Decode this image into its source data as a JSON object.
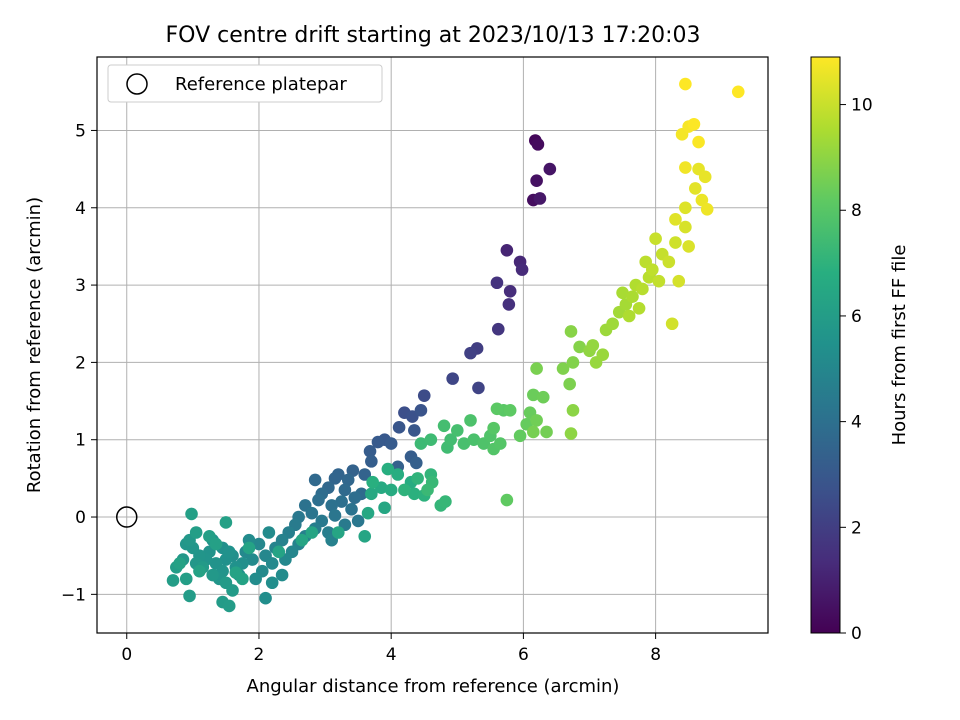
{
  "chart_data": {
    "type": "scatter",
    "title": "FOV centre drift starting at 2023/10/13 17:20:03",
    "xlabel": "Angular distance from reference (arcmin)",
    "ylabel": "Rotation from reference (arcmin)",
    "xlim": [
      -0.45,
      9.7
    ],
    "ylim": [
      -1.5,
      5.95
    ],
    "xticks": [
      0,
      2,
      4,
      6,
      8
    ],
    "yticks": [
      -1,
      0,
      1,
      2,
      3,
      4,
      5
    ],
    "grid": true,
    "legend": {
      "location": "upper-left",
      "entries": [
        {
          "label": "Reference platepar",
          "marker": "open-circle"
        }
      ]
    },
    "reference_point": {
      "x": 0,
      "y": 0
    },
    "colorbar": {
      "label": "Hours from first FF file",
      "colormap": "viridis",
      "range": [
        0,
        10.9
      ],
      "ticks": [
        0,
        2,
        4,
        6,
        8,
        10
      ]
    },
    "points": [
      [
        6.18,
        4.87,
        0.2
      ],
      [
        6.22,
        4.82,
        0.3
      ],
      [
        6.15,
        4.1,
        0.4
      ],
      [
        6.2,
        4.35,
        0.5
      ],
      [
        6.4,
        4.5,
        0.6
      ],
      [
        6.25,
        4.12,
        0.7
      ],
      [
        5.75,
        3.45,
        1.1
      ],
      [
        5.95,
        3.3,
        1.2
      ],
      [
        5.98,
        3.2,
        1.3
      ],
      [
        5.8,
        2.92,
        1.4
      ],
      [
        5.78,
        2.75,
        1.5
      ],
      [
        5.6,
        3.03,
        1.6
      ],
      [
        5.62,
        2.43,
        1.7
      ],
      [
        5.3,
        2.18,
        2.0
      ],
      [
        5.2,
        2.12,
        2.1
      ],
      [
        5.32,
        1.67,
        2.2
      ],
      [
        4.93,
        1.79,
        2.3
      ],
      [
        4.5,
        1.57,
        2.5
      ],
      [
        4.2,
        1.35,
        2.6
      ],
      [
        4.32,
        1.3,
        2.7
      ],
      [
        4.45,
        1.38,
        2.8
      ],
      [
        4.12,
        1.16,
        2.9
      ],
      [
        4.35,
        1.12,
        2.95
      ],
      [
        3.9,
        1.0,
        3.0
      ],
      [
        3.8,
        0.97,
        3.05
      ],
      [
        4.0,
        0.95,
        3.1
      ],
      [
        3.68,
        0.85,
        3.15
      ],
      [
        4.3,
        0.78,
        3.2
      ],
      [
        3.7,
        0.72,
        3.25
      ],
      [
        4.38,
        0.7,
        3.3
      ],
      [
        4.1,
        0.65,
        3.35
      ],
      [
        3.42,
        0.6,
        3.4
      ],
      [
        3.6,
        0.55,
        3.45
      ],
      [
        3.2,
        0.55,
        3.5
      ],
      [
        3.15,
        0.5,
        3.55
      ],
      [
        3.35,
        0.48,
        3.6
      ],
      [
        3.05,
        0.38,
        3.65
      ],
      [
        2.85,
        0.48,
        3.7
      ],
      [
        3.3,
        0.35,
        3.75
      ],
      [
        3.55,
        0.3,
        3.8
      ],
      [
        2.95,
        0.3,
        3.85
      ],
      [
        3.45,
        0.25,
        3.9
      ],
      [
        2.9,
        0.22,
        3.95
      ],
      [
        3.25,
        0.2,
        4.0
      ],
      [
        3.1,
        0.15,
        4.05
      ],
      [
        2.7,
        0.15,
        4.1
      ],
      [
        3.4,
        0.1,
        4.15
      ],
      [
        2.8,
        0.05,
        4.2
      ],
      [
        3.15,
        0.02,
        4.25
      ],
      [
        3.5,
        -0.05,
        4.3
      ],
      [
        2.6,
        0.0,
        4.35
      ],
      [
        2.95,
        -0.05,
        4.4
      ],
      [
        3.3,
        -0.1,
        4.45
      ],
      [
        2.55,
        -0.1,
        4.5
      ],
      [
        2.85,
        -0.15,
        4.55
      ],
      [
        3.05,
        -0.2,
        4.6
      ],
      [
        2.45,
        -0.2,
        4.65
      ],
      [
        2.7,
        -0.25,
        4.7
      ],
      [
        3.1,
        -0.3,
        4.75
      ],
      [
        2.35,
        -0.3,
        4.8
      ],
      [
        2.6,
        -0.35,
        4.85
      ],
      [
        2.25,
        -0.4,
        4.9
      ],
      [
        2.5,
        -0.45,
        4.95
      ],
      [
        2.0,
        -0.35,
        5.0
      ],
      [
        2.1,
        -0.5,
        5.0
      ],
      [
        2.4,
        -0.55,
        5.05
      ],
      [
        1.8,
        -0.45,
        5.1
      ],
      [
        2.2,
        -0.6,
        5.1
      ],
      [
        1.9,
        -0.55,
        5.15
      ],
      [
        2.05,
        -0.7,
        5.15
      ],
      [
        2.15,
        -0.2,
        5.2
      ],
      [
        1.85,
        -0.3,
        5.2
      ],
      [
        2.35,
        -0.75,
        5.25
      ],
      [
        1.95,
        -0.8,
        5.25
      ],
      [
        2.2,
        -0.85,
        5.3
      ],
      [
        2.1,
        -1.05,
        5.3
      ],
      [
        1.75,
        -0.6,
        5.35
      ],
      [
        1.6,
        -0.5,
        5.35
      ],
      [
        1.45,
        -0.4,
        5.4
      ],
      [
        1.7,
        -0.75,
        5.4
      ],
      [
        1.3,
        -0.3,
        5.45
      ],
      [
        1.5,
        -0.55,
        5.45
      ],
      [
        1.65,
        -0.65,
        5.5
      ],
      [
        1.55,
        -0.45,
        5.5
      ],
      [
        1.35,
        -0.6,
        5.55
      ],
      [
        1.25,
        -0.45,
        5.55
      ],
      [
        1.45,
        -0.7,
        5.6
      ],
      [
        1.2,
        -0.55,
        5.6
      ],
      [
        1.1,
        -0.5,
        5.65
      ],
      [
        1.4,
        -0.8,
        5.65
      ],
      [
        1.0,
        -0.4,
        5.7
      ],
      [
        0.9,
        -0.35,
        5.7
      ],
      [
        1.05,
        -0.6,
        5.75
      ],
      [
        0.85,
        -0.55,
        5.75
      ],
      [
        0.95,
        -0.3,
        5.8
      ],
      [
        1.3,
        -0.75,
        5.8
      ],
      [
        1.15,
        -0.65,
        5.85
      ],
      [
        1.5,
        -0.85,
        5.85
      ],
      [
        1.6,
        -0.95,
        5.9
      ],
      [
        1.45,
        -1.1,
        5.9
      ],
      [
        1.55,
        -1.15,
        5.95
      ],
      [
        0.95,
        -1.02,
        5.95
      ],
      [
        0.75,
        -0.65,
        6.0
      ],
      [
        0.7,
        -0.82,
        6.0
      ],
      [
        0.9,
        -0.8,
        6.05
      ],
      [
        1.05,
        -0.2,
        6.05
      ],
      [
        0.98,
        0.04,
        6.1
      ],
      [
        1.25,
        -0.25,
        6.1
      ],
      [
        1.5,
        -0.07,
        6.15
      ],
      [
        1.35,
        -0.35,
        6.15
      ],
      [
        1.1,
        -0.7,
        6.2
      ],
      [
        0.8,
        -0.6,
        6.2
      ],
      [
        1.75,
        -0.8,
        6.25
      ],
      [
        1.65,
        -0.72,
        6.25
      ],
      [
        1.85,
        -0.4,
        6.3
      ],
      [
        2.3,
        -0.45,
        6.3
      ],
      [
        2.65,
        -0.3,
        6.35
      ],
      [
        2.8,
        -0.2,
        6.35
      ],
      [
        3.2,
        -0.2,
        6.4
      ],
      [
        3.6,
        -0.25,
        6.4
      ],
      [
        3.9,
        0.12,
        6.45
      ],
      [
        3.65,
        0.05,
        6.5
      ],
      [
        3.7,
        0.3,
        6.55
      ],
      [
        3.85,
        0.38,
        6.6
      ],
      [
        4.0,
        0.35,
        6.65
      ],
      [
        4.3,
        0.45,
        6.7
      ],
      [
        4.1,
        0.55,
        6.75
      ],
      [
        3.95,
        0.62,
        6.8
      ],
      [
        3.72,
        0.45,
        6.85
      ],
      [
        4.35,
        0.3,
        6.9
      ],
      [
        4.5,
        0.28,
        6.95
      ],
      [
        4.2,
        0.35,
        7.0
      ],
      [
        4.4,
        0.5,
        7.05
      ],
      [
        4.6,
        0.55,
        7.1
      ],
      [
        4.75,
        0.15,
        7.15
      ],
      [
        4.82,
        0.2,
        7.2
      ],
      [
        4.62,
        0.45,
        7.25
      ],
      [
        4.55,
        0.35,
        7.3
      ],
      [
        4.45,
        0.95,
        7.35
      ],
      [
        4.6,
        1.0,
        7.4
      ],
      [
        4.85,
        0.9,
        7.45
      ],
      [
        4.9,
        1.0,
        7.5
      ],
      [
        4.8,
        1.18,
        7.55
      ],
      [
        5.0,
        1.12,
        7.6
      ],
      [
        5.1,
        0.95,
        7.65
      ],
      [
        5.25,
        1.0,
        7.7
      ],
      [
        5.2,
        1.25,
        7.75
      ],
      [
        5.4,
        0.95,
        7.8
      ],
      [
        5.5,
        1.05,
        7.85
      ],
      [
        5.55,
        0.88,
        7.9
      ],
      [
        5.65,
        0.95,
        7.95
      ],
      [
        5.55,
        1.15,
        8.0
      ],
      [
        5.7,
        1.38,
        8.05
      ],
      [
        5.6,
        1.4,
        8.1
      ],
      [
        5.8,
        1.38,
        8.15
      ],
      [
        5.75,
        0.22,
        8.2
      ],
      [
        5.95,
        1.05,
        8.25
      ],
      [
        6.05,
        1.2,
        8.3
      ],
      [
        6.1,
        1.35,
        8.35
      ],
      [
        6.15,
        1.58,
        8.4
      ],
      [
        6.3,
        1.55,
        8.45
      ],
      [
        6.2,
        1.25,
        8.5
      ],
      [
        6.35,
        1.1,
        8.55
      ],
      [
        6.15,
        1.1,
        8.6
      ],
      [
        6.2,
        1.92,
        8.65
      ],
      [
        6.7,
        1.72,
        8.7
      ],
      [
        6.6,
        1.92,
        8.75
      ],
      [
        6.75,
        2.0,
        8.8
      ],
      [
        6.85,
        2.2,
        8.85
      ],
      [
        6.72,
        2.4,
        8.9
      ],
      [
        6.75,
        1.38,
        8.95
      ],
      [
        6.72,
        1.08,
        9.0
      ],
      [
        7.0,
        2.15,
        9.05
      ],
      [
        7.05,
        2.22,
        9.1
      ],
      [
        7.1,
        2.0,
        9.15
      ],
      [
        7.2,
        2.1,
        9.2
      ],
      [
        7.25,
        2.42,
        9.25
      ],
      [
        7.35,
        2.5,
        9.3
      ],
      [
        7.45,
        2.65,
        9.35
      ],
      [
        7.55,
        2.75,
        9.4
      ],
      [
        7.5,
        2.9,
        9.45
      ],
      [
        7.65,
        2.85,
        9.5
      ],
      [
        7.6,
        2.6,
        9.55
      ],
      [
        7.7,
        3.0,
        9.6
      ],
      [
        7.75,
        2.7,
        9.65
      ],
      [
        7.8,
        2.95,
        9.7
      ],
      [
        7.9,
        3.1,
        9.75
      ],
      [
        7.85,
        3.3,
        9.8
      ],
      [
        7.95,
        3.2,
        9.85
      ],
      [
        8.05,
        3.05,
        9.9
      ],
      [
        8.1,
        3.4,
        9.95
      ],
      [
        8.0,
        3.6,
        10.0
      ],
      [
        8.2,
        3.3,
        10.05
      ],
      [
        8.3,
        3.55,
        10.1
      ],
      [
        8.25,
        2.5,
        10.15
      ],
      [
        8.35,
        3.05,
        10.2
      ],
      [
        8.45,
        3.75,
        10.25
      ],
      [
        8.5,
        3.5,
        10.3
      ],
      [
        8.45,
        4.0,
        10.35
      ],
      [
        8.3,
        3.85,
        10.4
      ],
      [
        8.6,
        4.25,
        10.45
      ],
      [
        8.65,
        4.5,
        10.5
      ],
      [
        8.75,
        4.4,
        10.55
      ],
      [
        8.7,
        4.1,
        10.6
      ],
      [
        8.78,
        3.98,
        10.65
      ],
      [
        8.45,
        4.52,
        10.7
      ],
      [
        8.4,
        4.95,
        10.75
      ],
      [
        8.5,
        5.05,
        10.8
      ],
      [
        8.65,
        4.85,
        10.85
      ],
      [
        8.45,
        5.6,
        10.9
      ],
      [
        9.25,
        5.5,
        10.9
      ],
      [
        8.58,
        5.08,
        10.88
      ]
    ]
  }
}
